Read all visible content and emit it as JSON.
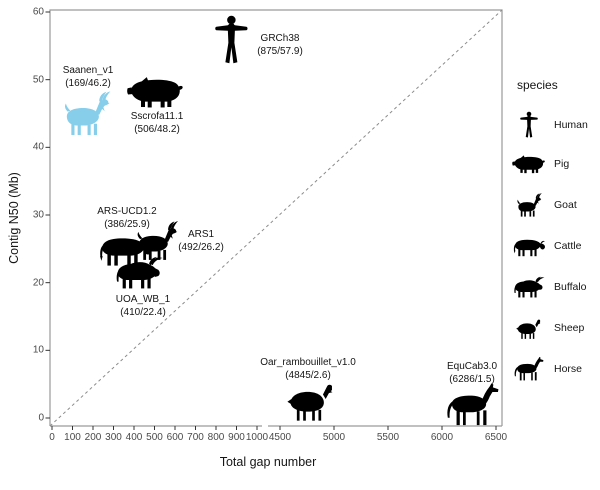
{
  "figure_title": "",
  "axes": {
    "xlabel": "Total gap number",
    "ylabel": "Contig N50 (Mb)"
  },
  "colors": {
    "highlight_silhouette": "#87CEEB",
    "default_silhouette": "#000000",
    "panel_border": "#9a9a9a",
    "reference_line": "#8c8c8c",
    "tick_text": "#4a4a4a",
    "label_text": "#151515"
  },
  "chart_data": {
    "type": "scatter",
    "title": "",
    "xlabel": "Total gap number",
    "ylabel": "Contig N50 (Mb)",
    "x_axis": {
      "broken": true,
      "segments": [
        {
          "min": 0,
          "max": 1000,
          "ticks": [
            0,
            100,
            200,
            300,
            400,
            500,
            600,
            700,
            800,
            900,
            1000
          ]
        },
        {
          "min": 4500,
          "max": 6500,
          "ticks": [
            4500,
            5000,
            5500,
            6000,
            6500
          ]
        }
      ]
    },
    "y_axis": {
      "min": 0,
      "max": 60,
      "ticks": [
        0,
        10,
        20,
        30,
        40,
        50,
        60
      ]
    },
    "reference_line": {
      "type": "diagonal-identity",
      "style": "dashed"
    },
    "points": [
      {
        "assembly": "Saanen_v1",
        "total_gap_number": 169,
        "contig_n50_mb": 46.2,
        "species": "Goat",
        "color": "#87CEEB",
        "label": "Saanen_v1",
        "sublabel": "(169/46.2)"
      },
      {
        "assembly": "Sscrofa11.1",
        "total_gap_number": 506,
        "contig_n50_mb": 48.2,
        "species": "Pig",
        "color": "#000000",
        "label": "Sscrofa11.1",
        "sublabel": "(506/48.2)"
      },
      {
        "assembly": "GRCh38",
        "total_gap_number": 875,
        "contig_n50_mb": 57.9,
        "species": "Human",
        "color": "#000000",
        "label": "GRCh38",
        "sublabel": "(875/57.9)"
      },
      {
        "assembly": "ARS-UCD1.2",
        "total_gap_number": 386,
        "contig_n50_mb": 25.9,
        "species": "Cattle",
        "color": "#000000",
        "label": "ARS-UCD1.2",
        "sublabel": "(386/25.9)"
      },
      {
        "assembly": "ARS1",
        "total_gap_number": 492,
        "contig_n50_mb": 26.2,
        "species": "Goat",
        "color": "#000000",
        "label": "ARS1",
        "sublabel": "(492/26.2)"
      },
      {
        "assembly": "UOA_WB_1",
        "total_gap_number": 410,
        "contig_n50_mb": 22.4,
        "species": "Buffalo",
        "color": "#000000",
        "label": "UOA_WB_1",
        "sublabel": "(410/22.4)"
      },
      {
        "assembly": "Oar_rambouillet_v1.0",
        "total_gap_number": 4845,
        "contig_n50_mb": 2.6,
        "species": "Sheep",
        "color": "#000000",
        "label": "Oar_rambouillet_v1.0",
        "sublabel": "(4845/2.6)"
      },
      {
        "assembly": "EquCab3.0",
        "total_gap_number": 6286,
        "contig_n50_mb": 1.5,
        "species": "Horse",
        "color": "#000000",
        "label": "EquCab3.0",
        "sublabel": "(6286/1.5)"
      }
    ],
    "legend": {
      "title": "species",
      "position": "right",
      "entries": [
        {
          "species": "Human",
          "icon": "human-icon"
        },
        {
          "species": "Pig",
          "icon": "pig-icon"
        },
        {
          "species": "Goat",
          "icon": "goat-icon"
        },
        {
          "species": "Cattle",
          "icon": "cattle-icon"
        },
        {
          "species": "Buffalo",
          "icon": "buffalo-icon"
        },
        {
          "species": "Sheep",
          "icon": "sheep-icon"
        },
        {
          "species": "Horse",
          "icon": "horse-icon"
        }
      ]
    }
  }
}
